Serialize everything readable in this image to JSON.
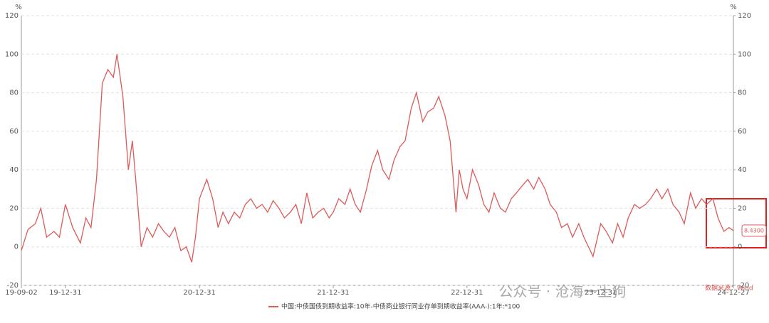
{
  "chart_data": {
    "type": "line",
    "y_unit": "%",
    "x": [
      "19-09-02",
      "19-09-20",
      "19-10-10",
      "19-10-25",
      "19-11-10",
      "19-11-30",
      "19-12-15",
      "19-12-31",
      "20-01-20",
      "20-02-10",
      "20-02-25",
      "20-03-10",
      "20-03-25",
      "20-04-10",
      "20-04-25",
      "20-05-10",
      "20-05-20",
      "20-06-05",
      "20-06-20",
      "20-07-01",
      "20-07-10",
      "20-07-25",
      "20-08-10",
      "20-08-25",
      "20-09-10",
      "20-09-25",
      "20-10-10",
      "20-10-25",
      "20-11-10",
      "20-11-25",
      "20-12-10",
      "20-12-20",
      "20-12-31",
      "21-01-20",
      "21-02-05",
      "21-02-20",
      "21-03-05",
      "21-03-20",
      "21-04-05",
      "21-04-20",
      "21-05-05",
      "21-05-20",
      "21-06-05",
      "21-06-20",
      "21-07-05",
      "21-07-20",
      "21-08-05",
      "21-08-20",
      "21-09-05",
      "21-09-20",
      "21-10-05",
      "21-10-20",
      "21-11-05",
      "21-11-20",
      "21-12-05",
      "21-12-20",
      "21-12-31",
      "22-01-15",
      "22-02-01",
      "22-02-15",
      "22-03-01",
      "22-03-15",
      "22-04-01",
      "22-04-15",
      "22-05-01",
      "22-05-15",
      "22-06-01",
      "22-06-15",
      "22-07-01",
      "22-07-15",
      "22-08-01",
      "22-08-15",
      "22-09-01",
      "22-09-15",
      "22-10-01",
      "22-10-15",
      "22-11-01",
      "22-11-15",
      "22-12-01",
      "22-12-10",
      "22-12-20",
      "22-12-31",
      "23-01-15",
      "23-02-01",
      "23-02-15",
      "23-03-01",
      "23-03-15",
      "23-04-01",
      "23-04-15",
      "23-05-01",
      "23-05-15",
      "23-06-01",
      "23-06-15",
      "23-07-01",
      "23-07-15",
      "23-08-01",
      "23-08-15",
      "23-09-01",
      "23-09-15",
      "23-10-01",
      "23-10-15",
      "23-11-01",
      "23-11-15",
      "23-12-10",
      "23-12-31",
      "24-01-15",
      "24-02-01",
      "24-02-15",
      "24-03-01",
      "24-03-15",
      "24-04-01",
      "24-04-15",
      "24-05-01",
      "24-05-15",
      "24-06-01",
      "24-06-15",
      "24-07-01",
      "24-07-15",
      "24-08-01",
      "24-08-15",
      "24-09-01",
      "24-09-15",
      "24-10-01",
      "24-10-15",
      "24-11-01",
      "24-11-15",
      "24-12-01",
      "24-12-15",
      "24-12-27"
    ],
    "series": [
      {
        "name": "中国:中债国债到期收益率:10年-中债商业银行同业存单到期收益率(AAA-):1年:*100",
        "color": "#dd5a5a",
        "values": [
          -2,
          9,
          12,
          20,
          5,
          8,
          5,
          22,
          10,
          2,
          15,
          10,
          35,
          85,
          92,
          88,
          100,
          78,
          40,
          55,
          35,
          0,
          10,
          5,
          12,
          8,
          5,
          10,
          -2,
          0,
          -8,
          5,
          25,
          35,
          25,
          10,
          18,
          12,
          18,
          15,
          22,
          25,
          20,
          22,
          18,
          24,
          20,
          15,
          18,
          22,
          12,
          28,
          15,
          18,
          20,
          15,
          18,
          25,
          22,
          30,
          22,
          18,
          30,
          42,
          50,
          40,
          35,
          45,
          52,
          55,
          72,
          80,
          65,
          70,
          72,
          78,
          68,
          55,
          18,
          40,
          30,
          25,
          40,
          32,
          22,
          18,
          28,
          20,
          18,
          25,
          28,
          32,
          35,
          30,
          36,
          30,
          22,
          18,
          10,
          12,
          5,
          12,
          5,
          -5,
          12,
          8,
          2,
          12,
          5,
          15,
          22,
          20,
          22,
          25,
          30,
          25,
          30,
          22,
          18,
          12,
          28,
          20,
          25,
          22,
          25,
          15,
          8,
          10,
          8.43
        ]
      }
    ],
    "end_label": "8.4300",
    "xlim": [
      "19-09-02",
      "24-12-27"
    ],
    "xticks": [
      "19-09-02",
      "19-12-31",
      "20-12-31",
      "21-12-31",
      "22-12-31",
      "23-12-31",
      "24-12-27"
    ],
    "ylim": [
      -20,
      120
    ],
    "yticks": [
      -20,
      0,
      20,
      40,
      60,
      80,
      100,
      120
    ],
    "y2lim": [
      -20,
      120
    ],
    "y2ticks": [
      -20,
      0,
      20,
      40,
      60,
      80,
      100,
      120
    ],
    "grid": true,
    "watermark": "公众号 · 沧海一土狗",
    "source": "数据来源：Wind"
  }
}
